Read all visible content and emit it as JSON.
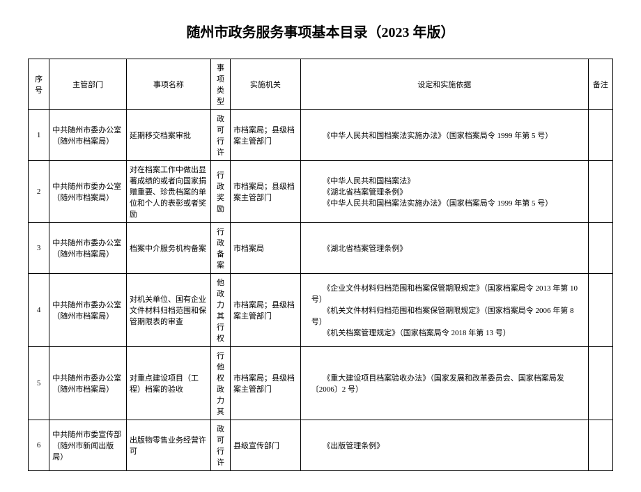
{
  "title": "随州市政务服务事项基本目录（2023 年版）",
  "headers": {
    "seq": "序号",
    "dept": "主管部门",
    "name": "事项名称",
    "type": "事项类型",
    "org": "实施机关",
    "basis": "设定和实施依据",
    "note": "备注"
  },
  "rows": [
    {
      "seq": "1",
      "dept": "中共随州市委办公室（随州市档案局）",
      "name": "延期移交档案审批",
      "type": "政可行许",
      "org": "市档案局；县级档案主管部门",
      "basis": "　　《中华人民共和国档案法实施办法》（国家档案局令 1999 年第 5 号）",
      "note": ""
    },
    {
      "seq": "2",
      "dept": "中共随州市委办公室（随州市档案局）",
      "name": "对在档案工作中做出显著成绩的或者向国家捐赠重要、珍贵档案的单位和个人的表彰或者奖励",
      "type": "行政奖励",
      "org": "市档案局；县级档案主管部门",
      "basis": "　　《中华人民共和国档案法》\n　　《湖北省档案管理条例》\n　　《中华人民共和国档案法实施办法》（国家档案局令 1999 年第 5 号）",
      "note": ""
    },
    {
      "seq": "3",
      "dept": "中共随州市委办公室（随州市档案局）",
      "name": "档案中介服务机构备案",
      "type": "行政备案",
      "org": "市档案局",
      "basis": "　　《湖北省档案管理条例》",
      "note": ""
    },
    {
      "seq": "4",
      "dept": "中共随州市委办公室（随州市档案局）",
      "name": "对机关单位、国有企业文件材料归档范围和保管期限表的审查",
      "type": "他政力其行权",
      "org": "市档案局；县级档案主管部门",
      "basis": "　　《企业文件材料归档范围和档案保管期限规定》（国家档案局令 2013 年第 10 号）\n　　《机关文件材料归档范围和档案保管期限规定》（国家档案局令 2006 年第 8 号）\n　　《机关档案管理规定》（国家档案局令 2018 年第 13 号）",
      "note": ""
    },
    {
      "seq": "5",
      "dept": "中共随州市委办公室（随州市档案局）",
      "name": "对重点建设项目（工程）档案的验收",
      "type": "行他权政力其",
      "org": "市档案局；县级档案主管部门",
      "basis": "　　《重大建设项目档案验收办法》（国家发展和改革委员会、国家档案局发〔2006〕2 号）",
      "note": ""
    },
    {
      "seq": "6",
      "dept": "中共随州市委宣传部（随州市新闻出版局）",
      "name": "出版物零售业务经营许可",
      "type": "政可行许",
      "org": "县级宣传部门",
      "basis": "　　《出版管理条例》",
      "note": ""
    }
  ]
}
